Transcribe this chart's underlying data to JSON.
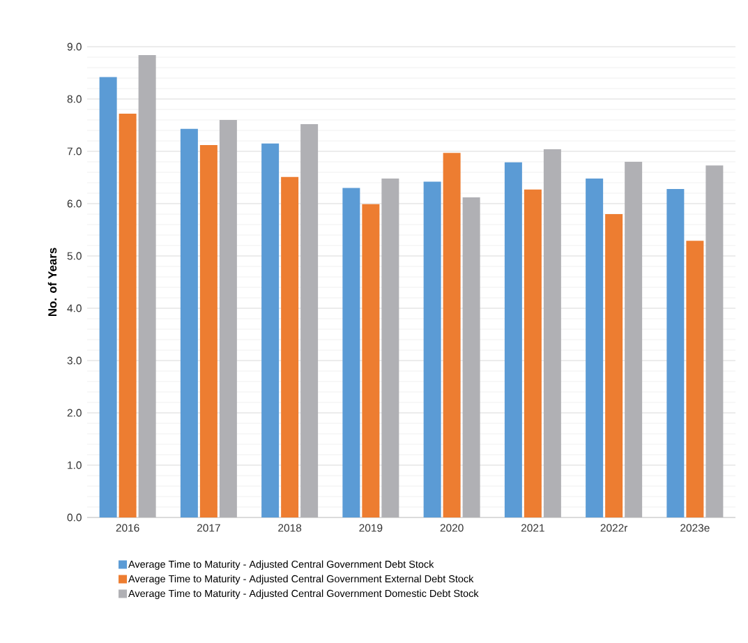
{
  "chart_data": {
    "type": "bar",
    "ylabel": "No. of Years",
    "categories": [
      "2016",
      "2017",
      "2018",
      "2019",
      "2020",
      "2021",
      "2022r",
      "2023e"
    ],
    "series": [
      {
        "name": "Average Time to Maturity - Adjusted Central Government Debt Stock",
        "color": "#5b9bd5",
        "values": [
          8.42,
          7.43,
          7.15,
          6.3,
          6.42,
          6.79,
          6.48,
          6.28
        ]
      },
      {
        "name": "Average Time to Maturity - Adjusted Central Government External Debt Stock",
        "color": "#ed7d31",
        "values": [
          7.72,
          7.12,
          6.51,
          5.99,
          6.97,
          6.27,
          5.8,
          5.29
        ]
      },
      {
        "name": "Average Time to Maturity - Adjusted Central Government Domestic Debt Stock",
        "color": "#b0b0b4",
        "values": [
          8.84,
          7.6,
          7.52,
          6.48,
          6.12,
          7.04,
          6.8,
          6.73
        ]
      }
    ],
    "ylim": [
      0,
      9
    ],
    "yticks": [
      {
        "value": 0,
        "label": "0.0"
      },
      {
        "value": 1,
        "label": "1.0"
      },
      {
        "value": 2,
        "label": "2.0"
      },
      {
        "value": 3,
        "label": "3.0"
      },
      {
        "value": 4,
        "label": "4.0"
      },
      {
        "value": 5,
        "label": "5.0"
      },
      {
        "value": 6,
        "label": "6.0"
      },
      {
        "value": 7,
        "label": "7.0"
      },
      {
        "value": 8,
        "label": "8.0"
      },
      {
        "value": 9,
        "label": "9.0"
      }
    ],
    "grid": "y",
    "legend": "bottom"
  }
}
